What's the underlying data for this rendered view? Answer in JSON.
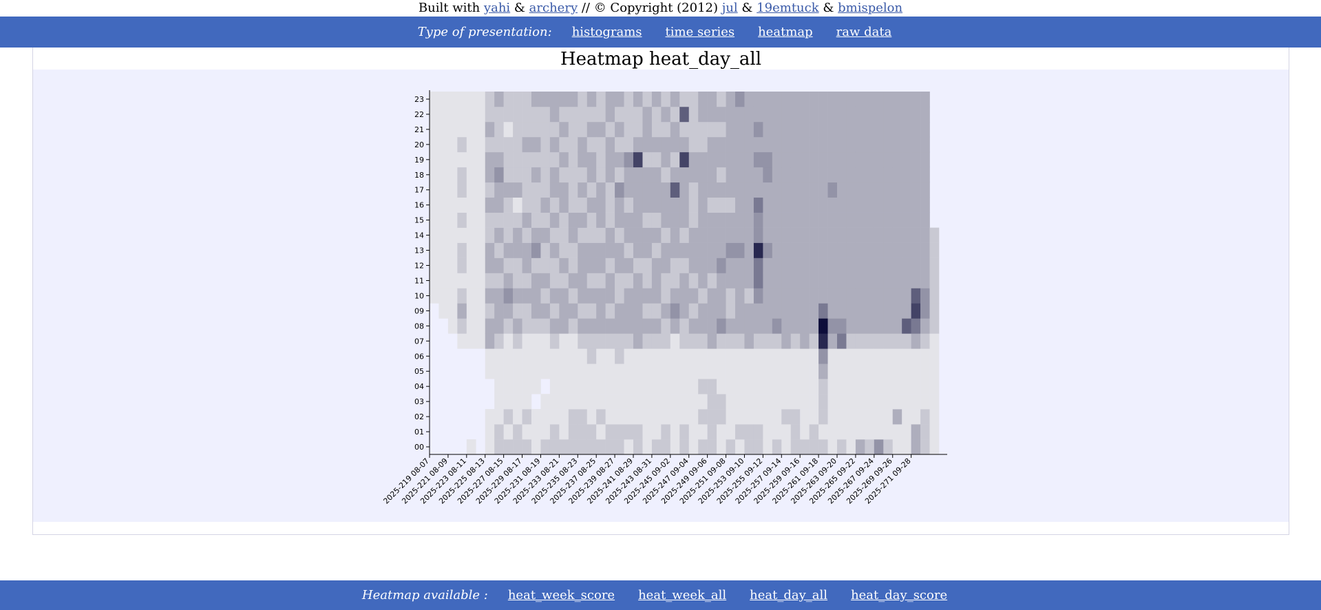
{
  "credits": {
    "prefix": "Built with",
    "links": [
      "yahi",
      "archery"
    ],
    "amp": "&",
    "middle": "// © Copyright (2012)",
    "authors": [
      "jul",
      "19emtuck",
      "bmispelon"
    ]
  },
  "presentation": {
    "label": "Type of presentation:",
    "links": [
      "histograms",
      "time series",
      "heatmap",
      "raw data"
    ]
  },
  "heatmap_nav": {
    "label": "Heatmap available :",
    "links": [
      "heat_week_score",
      "heat_week_all",
      "heat_day_all",
      "heat_day_score"
    ]
  },
  "colors": {
    "bar": "#4169be",
    "chart_bg": "#eff0fe",
    "cell_dark": "#0d0d3a",
    "cell_light": "#ffffff"
  },
  "chart_data": {
    "type": "heatmap",
    "title": "Heatmap heat_day_all",
    "y_categories": [
      "00",
      "01",
      "02",
      "03",
      "04",
      "05",
      "06",
      "07",
      "08",
      "09",
      "10",
      "11",
      "12",
      "13",
      "14",
      "15",
      "16",
      "17",
      "18",
      "19",
      "20",
      "21",
      "22",
      "23"
    ],
    "x_tick_labels": [
      "2025-219 08-07",
      "2025-221 08-09",
      "2025-223 08-11",
      "2025-225 08-13",
      "2025-227 08-15",
      "2025-229 08-17",
      "2025-231 08-19",
      "2025-233 08-21",
      "2025-235 08-23",
      "2025-237 08-25",
      "2025-239 08-27",
      "2025-241 08-29",
      "2025-243 08-31",
      "2025-245 09-02",
      "2025-247 09-04",
      "2025-249 09-06",
      "2025-251 09-08",
      "2025-253 09-10",
      "2025-255 09-12",
      "2025-257 09-14",
      "2025-259 09-16",
      "2025-261 09-18",
      "2025-263 09-20",
      "2025-265 09-22",
      "2025-267 09-24",
      "2025-269 09-26",
      "2025-271 09-28"
    ],
    "x_range": [
      "2025-219 08-07",
      "2025-273 09-30"
    ],
    "values": [
      [
        0,
        0,
        0,
        0,
        0,
        0,
        0,
        0,
        0,
        0,
        1,
        1,
        1,
        1,
        1,
        1,
        1,
        1,
        1,
        1,
        1,
        1,
        1,
        1
      ],
      [
        0,
        0,
        0,
        0,
        0,
        0,
        0,
        0,
        0,
        1,
        1,
        1,
        1,
        1,
        1,
        1,
        1,
        1,
        1,
        1,
        1,
        1,
        1,
        1
      ],
      [
        0,
        0,
        0,
        0,
        0,
        0,
        0,
        0,
        1,
        1,
        1,
        1,
        1,
        1,
        1,
        1,
        1,
        1,
        1,
        1,
        1,
        1,
        1,
        1
      ],
      [
        0,
        0,
        0,
        0,
        0,
        0,
        0,
        1,
        2,
        3,
        2,
        1,
        2,
        2,
        1,
        2,
        1,
        2,
        2,
        1,
        2,
        1,
        1,
        1
      ],
      [
        1,
        0,
        0,
        0,
        0,
        0,
        0,
        1,
        1,
        1,
        1,
        1,
        1,
        1,
        1,
        1,
        1,
        1,
        1,
        1,
        1,
        1,
        1,
        1
      ],
      [
        0,
        0,
        0,
        0,
        0,
        0,
        0,
        1,
        1,
        1,
        1,
        1,
        1,
        1,
        1,
        1,
        1,
        1,
        1,
        1,
        1,
        1,
        1,
        1
      ],
      [
        1,
        1,
        1,
        0,
        0,
        1,
        1,
        3,
        3,
        2,
        3,
        2,
        3,
        3,
        2,
        2,
        3,
        2,
        3,
        3,
        2,
        3,
        2,
        2
      ],
      [
        2,
        2,
        1,
        1,
        1,
        1,
        1,
        2,
        3,
        3,
        3,
        2,
        3,
        2,
        3,
        2,
        3,
        3,
        4,
        3,
        2,
        2,
        2,
        3
      ],
      [
        2,
        1,
        2,
        1,
        1,
        1,
        1,
        1,
        2,
        3,
        4,
        3,
        2,
        3,
        2,
        2,
        2,
        3,
        2,
        2,
        2,
        1,
        2,
        2
      ],
      [
        2,
        2,
        1,
        1,
        1,
        1,
        1,
        2,
        3,
        2,
        3,
        2,
        2,
        3,
        3,
        2,
        1,
        3,
        2,
        2,
        2,
        2,
        2,
        2
      ],
      [
        2,
        1,
        2,
        1,
        1,
        1,
        1,
        1,
        2,
        2,
        3,
        2,
        3,
        3,
        2,
        3,
        2,
        2,
        2,
        2,
        3,
        2,
        2,
        2
      ],
      [
        1,
        1,
        1,
        0,
        1,
        1,
        1,
        1,
        2,
        3,
        3,
        3,
        2,
        4,
        3,
        2,
        2,
        2,
        3,
        2,
        3,
        2,
        2,
        3
      ],
      [
        2,
        1,
        1,
        1,
        0,
        1,
        1,
        1,
        2,
        3,
        2,
        3,
        2,
        2,
        3,
        2,
        3,
        2,
        2,
        2,
        2,
        2,
        2,
        3
      ],
      [
        2,
        2,
        1,
        1,
        1,
        1,
        1,
        2,
        3,
        2,
        3,
        2,
        2,
        3,
        2,
        3,
        2,
        3,
        3,
        2,
        3,
        2,
        3,
        3
      ],
      [
        2,
        1,
        1,
        1,
        1,
        1,
        1,
        1,
        3,
        3,
        3,
        2,
        3,
        2,
        2,
        2,
        3,
        3,
        2,
        3,
        2,
        3,
        2,
        3
      ],
      [
        2,
        2,
        2,
        1,
        1,
        1,
        1,
        1,
        2,
        3,
        2,
        3,
        2,
        2,
        3,
        3,
        2,
        2,
        2,
        2,
        2,
        2,
        2,
        3
      ],
      [
        2,
        2,
        2,
        1,
        1,
        1,
        1,
        2,
        3,
        2,
        3,
        3,
        3,
        3,
        2,
        3,
        2,
        3,
        2,
        3,
        3,
        2,
        2,
        2
      ],
      [
        2,
        2,
        1,
        1,
        1,
        1,
        2,
        2,
        3,
        2,
        3,
        2,
        3,
        3,
        2,
        2,
        3,
        2,
        3,
        3,
        2,
        3,
        2,
        3
      ],
      [
        2,
        1,
        2,
        1,
        1,
        1,
        1,
        2,
        3,
        3,
        3,
        2,
        3,
        3,
        2,
        3,
        3,
        3,
        2,
        2,
        2,
        3,
        2,
        2
      ],
      [
        2,
        2,
        1,
        1,
        1,
        1,
        1,
        2,
        3,
        2,
        3,
        3,
        2,
        3,
        3,
        2,
        2,
        2,
        3,
        3,
        3,
        2,
        3,
        3
      ],
      [
        2,
        2,
        1,
        1,
        1,
        1,
        2,
        2,
        3,
        3,
        2,
        2,
        3,
        3,
        2,
        3,
        3,
        4,
        2,
        3,
        2,
        3,
        2,
        3
      ],
      [
        1,
        2,
        1,
        1,
        1,
        1,
        1,
        2,
        3,
        3,
        3,
        2,
        3,
        2,
        3,
        3,
        2,
        3,
        3,
        4,
        2,
        2,
        2,
        2
      ],
      [
        2,
        2,
        1,
        1,
        1,
        1,
        1,
        3,
        3,
        3,
        3,
        3,
        2,
        3,
        3,
        3,
        3,
        3,
        3,
        7,
        3,
        2,
        2,
        3
      ],
      [
        1,
        1,
        1,
        1,
        1,
        1,
        1,
        2,
        3,
        2,
        3,
        2,
        2,
        3,
        3,
        2,
        3,
        3,
        3,
        2,
        3,
        3,
        3,
        2
      ],
      [
        2,
        1,
        1,
        1,
        1,
        1,
        1,
        2,
        3,
        2,
        3,
        3,
        3,
        2,
        3,
        2,
        3,
        3,
        3,
        2,
        3,
        2,
        2,
        3
      ],
      [
        2,
        2,
        1,
        1,
        1,
        1,
        1,
        2,
        2,
        3,
        2,
        2,
        3,
        3,
        2,
        3,
        3,
        3,
        2,
        3,
        3,
        2,
        3,
        2
      ],
      [
        1,
        1,
        1,
        1,
        1,
        1,
        1,
        1,
        3,
        4,
        3,
        2,
        2,
        3,
        3,
        3,
        3,
        6,
        3,
        2,
        3,
        3,
        2,
        3
      ],
      [
        2,
        2,
        1,
        1,
        1,
        1,
        1,
        2,
        2,
        3,
        3,
        3,
        2,
        3,
        2,
        3,
        3,
        3,
        3,
        7,
        3,
        2,
        6,
        2
      ],
      [
        1,
        1,
        1,
        1,
        1,
        1,
        1,
        2,
        3,
        2,
        3,
        2,
        3,
        3,
        3,
        2,
        2,
        2,
        3,
        3,
        2,
        2,
        2,
        2
      ],
      [
        2,
        1,
        2,
        1,
        2,
        1,
        1,
        2,
        3,
        3,
        2,
        3,
        3,
        3,
        3,
        3,
        3,
        3,
        3,
        3,
        2,
        2,
        3,
        3
      ],
      [
        2,
        2,
        2,
        2,
        2,
        1,
        1,
        3,
        3,
        3,
        3,
        2,
        3,
        3,
        3,
        3,
        2,
        3,
        3,
        3,
        3,
        2,
        3,
        3
      ],
      [
        1,
        1,
        2,
        2,
        1,
        1,
        1,
        2,
        4,
        3,
        3,
        3,
        4,
        3,
        3,
        3,
        2,
        3,
        2,
        3,
        3,
        2,
        3,
        2
      ],
      [
        2,
        1,
        1,
        1,
        1,
        1,
        1,
        2,
        3,
        2,
        2,
        3,
        3,
        4,
        3,
        3,
        2,
        3,
        3,
        3,
        3,
        3,
        3,
        3
      ],
      [
        1,
        2,
        1,
        1,
        1,
        1,
        1,
        2,
        3,
        3,
        3,
        3,
        3,
        4,
        3,
        3,
        3,
        3,
        3,
        3,
        3,
        3,
        3,
        4
      ],
      [
        2,
        2,
        1,
        1,
        1,
        1,
        1,
        3,
        3,
        3,
        2,
        3,
        3,
        3,
        3,
        3,
        3,
        3,
        3,
        3,
        3,
        3,
        3,
        3
      ],
      [
        2,
        2,
        1,
        1,
        1,
        1,
        1,
        2,
        3,
        3,
        4,
        5,
        5,
        8,
        4,
        4,
        5,
        3,
        3,
        4,
        3,
        4,
        3,
        3
      ],
      [
        1,
        1,
        1,
        1,
        1,
        1,
        1,
        2,
        3,
        3,
        3,
        3,
        3,
        4,
        3,
        3,
        3,
        3,
        4,
        4,
        3,
        3,
        3,
        3
      ],
      [
        2,
        1,
        1,
        1,
        1,
        1,
        1,
        2,
        4,
        3,
        3,
        3,
        3,
        3,
        3,
        3,
        3,
        3,
        3,
        3,
        3,
        3,
        3,
        3
      ],
      [
        1,
        1,
        2,
        1,
        1,
        1,
        1,
        3,
        3,
        3,
        3,
        3,
        3,
        3,
        3,
        3,
        3,
        3,
        3,
        3,
        3,
        3,
        3,
        3
      ],
      [
        2,
        2,
        2,
        1,
        1,
        1,
        1,
        2,
        3,
        3,
        3,
        3,
        3,
        3,
        3,
        3,
        3,
        3,
        3,
        3,
        3,
        3,
        3,
        3
      ],
      [
        2,
        1,
        1,
        1,
        1,
        1,
        1,
        3,
        3,
        3,
        3,
        3,
        3,
        3,
        3,
        3,
        3,
        3,
        3,
        3,
        3,
        3,
        3,
        3
      ],
      [
        2,
        2,
        1,
        1,
        1,
        1,
        1,
        2,
        3,
        3,
        3,
        3,
        3,
        3,
        3,
        3,
        3,
        3,
        3,
        3,
        3,
        3,
        3,
        3
      ],
      [
        2,
        1,
        2,
        2,
        2,
        3,
        4,
        8,
        9,
        5,
        3,
        3,
        3,
        3,
        3,
        3,
        3,
        3,
        3,
        3,
        3,
        3,
        3,
        3
      ],
      [
        1,
        1,
        1,
        1,
        1,
        1,
        1,
        3,
        4,
        3,
        3,
        3,
        3,
        3,
        3,
        3,
        3,
        4,
        3,
        3,
        3,
        3,
        3,
        3
      ],
      [
        2,
        1,
        1,
        1,
        1,
        1,
        1,
        5,
        4,
        3,
        3,
        3,
        3,
        3,
        3,
        3,
        3,
        3,
        3,
        3,
        3,
        3,
        3,
        3
      ],
      [
        1,
        1,
        1,
        1,
        1,
        1,
        1,
        2,
        3,
        3,
        3,
        3,
        3,
        3,
        3,
        3,
        3,
        3,
        3,
        3,
        3,
        3,
        3,
        3
      ],
      [
        3,
        1,
        1,
        1,
        1,
        1,
        1,
        2,
        3,
        3,
        3,
        3,
        3,
        3,
        3,
        3,
        3,
        3,
        3,
        3,
        3,
        3,
        3,
        3
      ],
      [
        2,
        1,
        1,
        1,
        1,
        1,
        1,
        2,
        3,
        3,
        3,
        3,
        3,
        3,
        3,
        3,
        3,
        3,
        3,
        3,
        3,
        3,
        3,
        3
      ],
      [
        4,
        1,
        1,
        1,
        1,
        1,
        1,
        2,
        3,
        3,
        3,
        3,
        3,
        3,
        3,
        3,
        3,
        3,
        3,
        3,
        3,
        3,
        3,
        3
      ],
      [
        2,
        1,
        1,
        1,
        1,
        1,
        1,
        2,
        3,
        3,
        3,
        3,
        3,
        3,
        3,
        3,
        3,
        3,
        3,
        3,
        3,
        3,
        3,
        3
      ],
      [
        1,
        1,
        3,
        1,
        1,
        1,
        1,
        2,
        3,
        3,
        3,
        3,
        3,
        3,
        3,
        3,
        3,
        3,
        3,
        3,
        3,
        3,
        3,
        3
      ],
      [
        1,
        1,
        1,
        1,
        1,
        1,
        1,
        2,
        6,
        3,
        3,
        3,
        3,
        3,
        3,
        3,
        3,
        3,
        3,
        3,
        3,
        3,
        3,
        3
      ],
      [
        3,
        3,
        1,
        1,
        1,
        1,
        1,
        3,
        5,
        7,
        6,
        3,
        3,
        3,
        3,
        3,
        3,
        3,
        3,
        3,
        3,
        3,
        3,
        3
      ],
      [
        2,
        2,
        2,
        1,
        1,
        1,
        1,
        2,
        3,
        4,
        4,
        3,
        3,
        3,
        3,
        3,
        3,
        3,
        3,
        3,
        3,
        3,
        3,
        3
      ],
      [
        1,
        1,
        1,
        1,
        1,
        1,
        1,
        1,
        2,
        2,
        2,
        2,
        2,
        2,
        2,
        0,
        0,
        0,
        0,
        0,
        0,
        0,
        0,
        0
      ]
    ],
    "legend": "none",
    "grid": false
  }
}
